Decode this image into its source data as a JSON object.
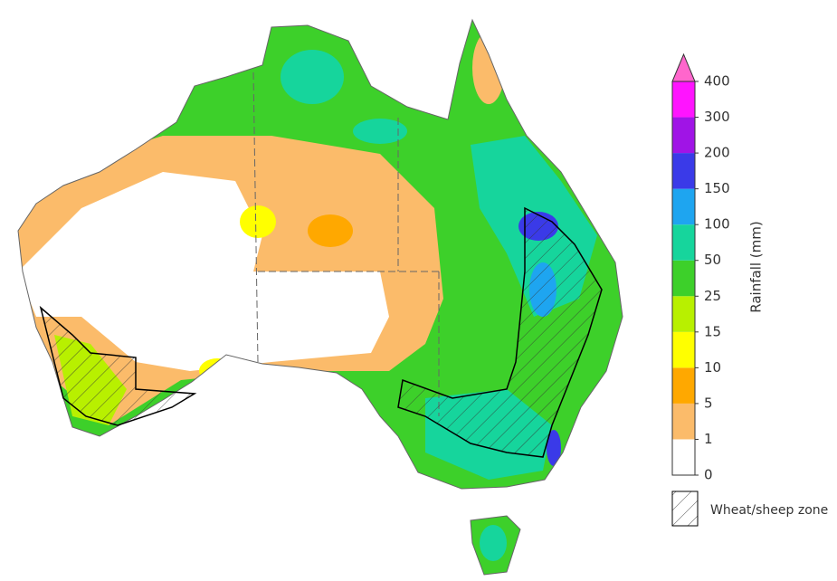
{
  "legend": {
    "title": "Rainfall (mm)",
    "ticks": [
      0,
      1,
      5,
      10,
      15,
      25,
      50,
      100,
      150,
      200,
      300,
      400
    ],
    "colors": [
      "#ffffff",
      "#fbbb6a",
      "#ffa800",
      "#ffff00",
      "#b8f000",
      "#3dd02a",
      "#16d59c",
      "#1ea5f0",
      "#3a3ae8",
      "#a014e6",
      "#ff14ff"
    ],
    "overflow_color": "#ff66cc"
  },
  "zone_legend": {
    "label": "Wheat/sheep zone"
  }
}
